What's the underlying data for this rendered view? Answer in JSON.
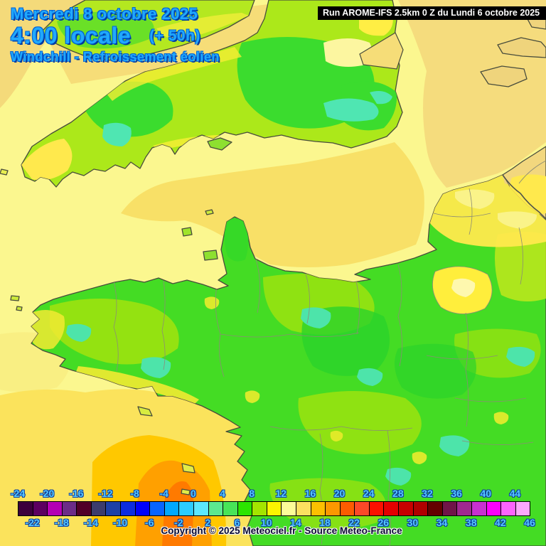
{
  "header": {
    "date_label": "Mercredi 8 octobre 2025",
    "time_label": "4:00 locale",
    "offset_label": "(+ 50h)",
    "variable_label": "Windchill - Refroissement éolien",
    "model_run_label": "Run AROME-IFS 2.5km 0 Z du Lundi 6 octobre 2025",
    "title_color": "#21a9fb"
  },
  "footer": {
    "copyright": "Copyright © 2025 Meteociel.fr - Source Meteo-France"
  },
  "scale": {
    "unit": "°C",
    "min": -24,
    "max": 46,
    "step_per_cell": 2,
    "top_labels": [
      "-24",
      "-20",
      "-16",
      "-12",
      "-8",
      "-4",
      "0",
      "4",
      "8",
      "12",
      "16",
      "20",
      "24",
      "28",
      "32",
      "36",
      "40",
      "44"
    ],
    "bottom_labels": [
      "-22",
      "-18",
      "-14",
      "-10",
      "-6",
      "-2",
      "2",
      "6",
      "10",
      "14",
      "18",
      "22",
      "26",
      "30",
      "34",
      "38",
      "42",
      "46"
    ],
    "label_color": "#55c9ff",
    "cell_colors": [
      "#3c003c",
      "#5c0060",
      "#b400b4",
      "#6c2c88",
      "#500028",
      "#3c3c6c",
      "#1c40a8",
      "#0c2ce0",
      "#0000fc",
      "#0864ff",
      "#00a8ff",
      "#2cccff",
      "#5ce8ff",
      "#5ce890",
      "#48e458",
      "#2ce400",
      "#a4e400",
      "#fcf400",
      "#fcfc98",
      "#fce060",
      "#fcc000",
      "#fc9800",
      "#fc5c00",
      "#fc4828",
      "#fc1000",
      "#e40000",
      "#c80000",
      "#b00000",
      "#640000",
      "#701448",
      "#a02890",
      "#c830d0",
      "#fc00fc",
      "#fc64fc",
      "#fca8fc"
    ]
  },
  "map": {
    "description": "AROME-IFS windchill field over the English Channel, southern England, Brittany and northern France",
    "palette": {
      "sea_pale_yellow": "#fbf78f",
      "sea_tan": "#f6dd78",
      "sea_gold": "#fbe35c",
      "sea_orange": "#ffc800",
      "sea_deep_orange": "#ffa000",
      "sea_hot_orange": "#ff7a00",
      "land_green": "#44dc24",
      "land_yellow_green": "#a8e81a",
      "land_cyan_patch": "#4fe6b2",
      "land_yellow_patch": "#ffe94d",
      "land_sand": "#f2d77e"
    }
  }
}
